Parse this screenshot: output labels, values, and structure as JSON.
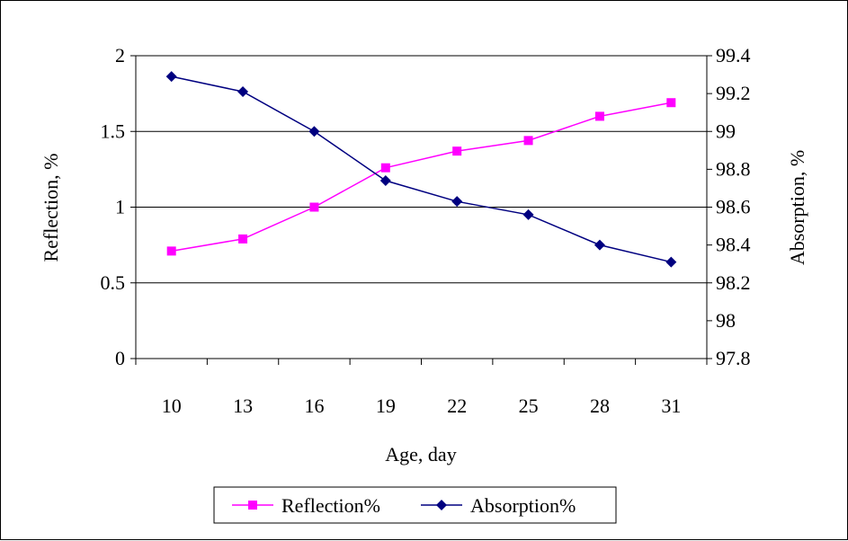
{
  "chart_data": {
    "type": "line",
    "title": "",
    "xlabel": "Age, day",
    "ylabel": "Reflection, %",
    "y2label": "Absorption, %",
    "categories": [
      "10",
      "13",
      "16",
      "19",
      "22",
      "25",
      "28",
      "31"
    ],
    "ylim": [
      0,
      2
    ],
    "y_ticks": [
      "0",
      "0.5",
      "1",
      "1.5",
      "2"
    ],
    "y2lim": [
      97.8,
      99.4
    ],
    "y2_ticks": [
      "97.8",
      "98",
      "98.2",
      "98.4",
      "98.6",
      "98.8",
      "99",
      "99.2",
      "99.4"
    ],
    "grid": true,
    "legend_position": "bottom",
    "series": [
      {
        "name": "Reflection%",
        "axis": "left",
        "color": "#ff00ff",
        "marker": "square",
        "values": [
          0.71,
          0.79,
          1.0,
          1.26,
          1.37,
          1.44,
          1.6,
          1.69
        ]
      },
      {
        "name": "Absorption%",
        "axis": "right",
        "color": "#000080",
        "marker": "diamond",
        "values": [
          99.29,
          99.21,
          99.0,
          98.74,
          98.63,
          98.56,
          98.4,
          98.31
        ]
      }
    ]
  }
}
